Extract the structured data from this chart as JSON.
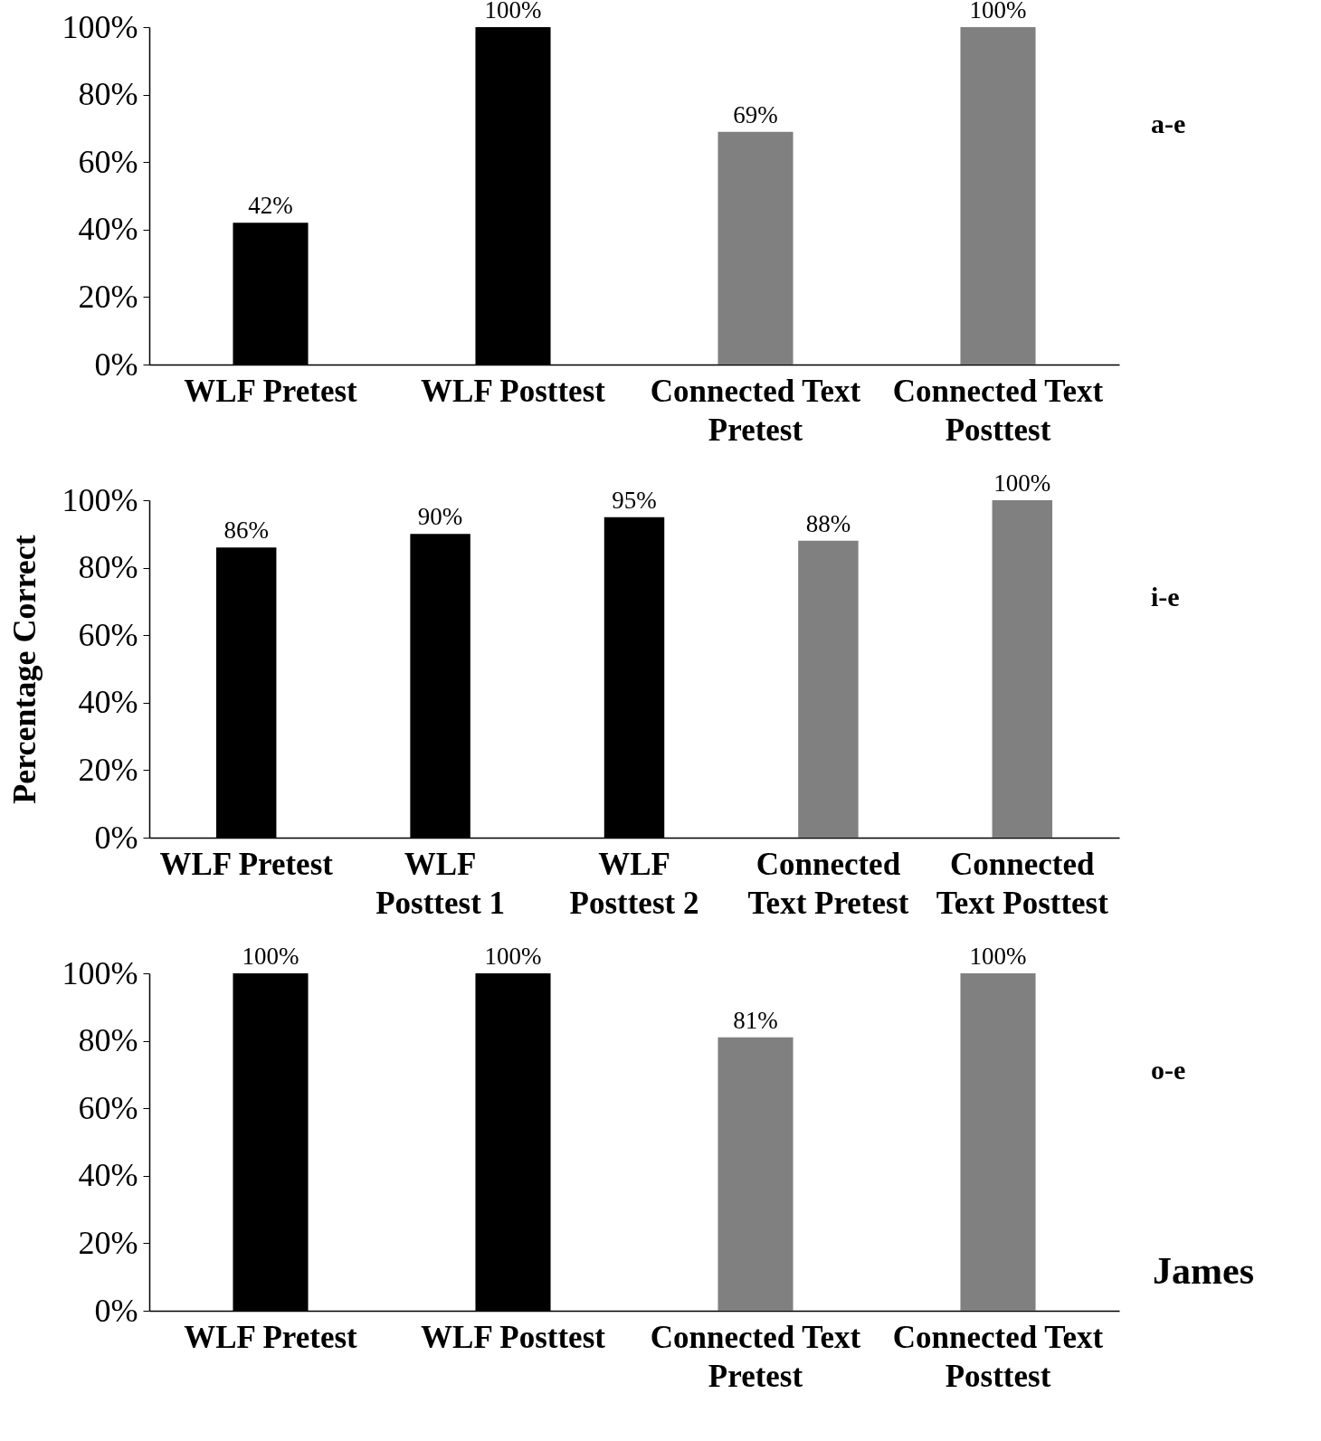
{
  "chart_data": [
    {
      "type": "bar",
      "annotations": [
        "a-e"
      ],
      "categories": [
        "WLF Pretest",
        "WLF Posttest",
        "Connected Text Pretest",
        "Connected Text Posttest"
      ],
      "values": [
        42,
        100,
        69,
        100
      ],
      "colors": [
        "#000000",
        "#000000",
        "#808080",
        "#808080"
      ],
      "value_labels": [
        "42%",
        "100%",
        "69%",
        "100%"
      ],
      "ylim": [
        0,
        100
      ],
      "yticks": [
        {
          "value": 0,
          "label": "0%"
        },
        {
          "value": 20,
          "label": "20%"
        },
        {
          "value": 40,
          "label": "40%"
        },
        {
          "value": 60,
          "label": "60%"
        },
        {
          "value": 80,
          "label": "80%"
        },
        {
          "value": 100,
          "label": "100%"
        }
      ]
    },
    {
      "type": "bar",
      "annotations": [
        "i-e"
      ],
      "ylabel": "Percentage Correct",
      "categories": [
        "WLF Pretest",
        "WLF Posttest 1",
        "WLF Posttest 2",
        "Connected Text Pretest",
        "Connected Text Posttest"
      ],
      "values": [
        86,
        90,
        95,
        88,
        100
      ],
      "colors": [
        "#000000",
        "#000000",
        "#000000",
        "#808080",
        "#808080"
      ],
      "value_labels": [
        "86%",
        "90%",
        "95%",
        "88%",
        "100%"
      ],
      "ylim": [
        0,
        100
      ],
      "yticks": [
        {
          "value": 0,
          "label": "0%"
        },
        {
          "value": 20,
          "label": "20%"
        },
        {
          "value": 40,
          "label": "40%"
        },
        {
          "value": 60,
          "label": "60%"
        },
        {
          "value": 80,
          "label": "80%"
        },
        {
          "value": 100,
          "label": "100%"
        }
      ]
    },
    {
      "type": "bar",
      "annotations": [
        "o-e",
        "James"
      ],
      "categories": [
        "WLF Pretest",
        "WLF Posttest",
        "Connected Text Pretest",
        "Connected Text Posttest"
      ],
      "values": [
        100,
        100,
        81,
        100
      ],
      "colors": [
        "#000000",
        "#000000",
        "#808080",
        "#808080"
      ],
      "value_labels": [
        "100%",
        "100%",
        "81%",
        "100%"
      ],
      "ylim": [
        0,
        100
      ],
      "yticks": [
        {
          "value": 0,
          "label": "0%"
        },
        {
          "value": 20,
          "label": "20%"
        },
        {
          "value": 40,
          "label": "40%"
        },
        {
          "value": 60,
          "label": "60%"
        },
        {
          "value": 80,
          "label": "80%"
        },
        {
          "value": 100,
          "label": "100%"
        }
      ]
    }
  ]
}
